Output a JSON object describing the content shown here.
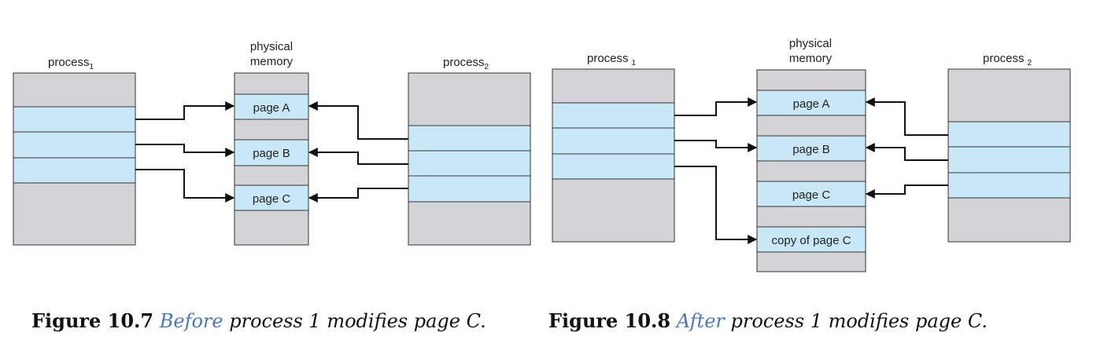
{
  "colors": {
    "gray": "#d4d4d6",
    "blue": "#c8e8f8",
    "stroke": "#333333",
    "caption_accent": "#4a78c0"
  },
  "fig7": {
    "process1": {
      "label": "process",
      "sub": "1"
    },
    "physical_memory": {
      "line1": "physical",
      "line2": "memory"
    },
    "process2": {
      "label": "process",
      "sub": "2"
    },
    "pages": [
      "page A",
      "page B",
      "page C"
    ]
  },
  "fig8": {
    "process1": {
      "label": "process",
      "sub": "1"
    },
    "physical_memory": {
      "line1": "physical",
      "line2": "memory"
    },
    "process2": {
      "label": "process",
      "sub": "2"
    },
    "pages": [
      "page A",
      "page B",
      "page C",
      "copy of page C"
    ]
  },
  "captions": [
    {
      "number": "Figure 10.7",
      "keyword": "Before",
      "rest": " process 1 modifies page C."
    },
    {
      "number": "Figure 10.8",
      "keyword": "After",
      "rest": " process 1 modifies page C."
    }
  ]
}
